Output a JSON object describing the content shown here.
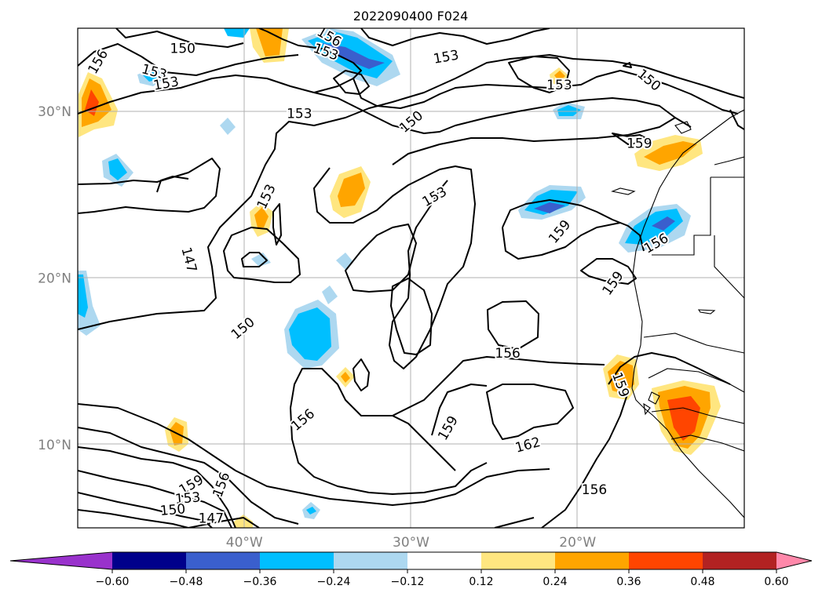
{
  "title": "2022090400 F024",
  "lat_labels": [
    {
      "text": "30°N",
      "lat": 30
    },
    {
      "text": "20°N",
      "lat": 20
    },
    {
      "text": "10°N",
      "lat": 10
    }
  ],
  "lon_labels": [
    {
      "text": "40°W",
      "lon": -40
    },
    {
      "text": "30°W",
      "lon": -30
    },
    {
      "text": "20°W",
      "lon": -20
    }
  ],
  "contour_labels": [
    {
      "text": "150",
      "lon": -43.7,
      "lat": 33.8,
      "rot": 0
    },
    {
      "text": "156",
      "lon": -48.8,
      "lat": 33.0,
      "rot": -60
    },
    {
      "text": "153",
      "lon": -45.4,
      "lat": 32.4,
      "rot": 15
    },
    {
      "text": "153",
      "lon": -44.7,
      "lat": 31.7,
      "rot": -10
    },
    {
      "text": "156",
      "lon": -34.9,
      "lat": 34.5,
      "rot": 30
    },
    {
      "text": "153",
      "lon": -35.1,
      "lat": 33.6,
      "rot": 20
    },
    {
      "text": "153",
      "lon": -27.9,
      "lat": 33.3,
      "rot": -10
    },
    {
      "text": "153",
      "lon": -21.1,
      "lat": 31.6,
      "rot": 0
    },
    {
      "text": "150",
      "lon": -15.7,
      "lat": 31.9,
      "rot": 40
    },
    {
      "text": "153",
      "lon": -36.7,
      "lat": 29.9,
      "rot": 0
    },
    {
      "text": "150",
      "lon": -30.0,
      "lat": 29.4,
      "rot": -40
    },
    {
      "text": "159",
      "lon": -16.3,
      "lat": 28.1,
      "rot": 0
    },
    {
      "text": "153",
      "lon": -38.7,
      "lat": 24.9,
      "rot": -65
    },
    {
      "text": "153",
      "lon": -28.6,
      "lat": 24.9,
      "rot": -30
    },
    {
      "text": "147",
      "lon": -43.3,
      "lat": 21.1,
      "rot": 75
    },
    {
      "text": "159",
      "lon": -21.1,
      "lat": 22.8,
      "rot": -50
    },
    {
      "text": "156",
      "lon": -15.3,
      "lat": 22.1,
      "rot": -30
    },
    {
      "text": "159",
      "lon": -17.9,
      "lat": 19.7,
      "rot": -55
    },
    {
      "text": "150",
      "lon": -40.1,
      "lat": 17.0,
      "rot": -40
    },
    {
      "text": "156",
      "lon": -24.2,
      "lat": 15.5,
      "rot": 0
    },
    {
      "text": "159",
      "lon": -17.4,
      "lat": 13.6,
      "rot": 70
    },
    {
      "text": "156",
      "lon": -36.5,
      "lat": 11.5,
      "rot": -40
    },
    {
      "text": "159",
      "lon": -27.8,
      "lat": 11.0,
      "rot": -60
    },
    {
      "text": "162",
      "lon": -23.0,
      "lat": 10.0,
      "rot": -15
    },
    {
      "text": "159",
      "lon": -43.2,
      "lat": 7.6,
      "rot": -30
    },
    {
      "text": "156",
      "lon": -41.4,
      "lat": 7.6,
      "rot": -70
    },
    {
      "text": "156",
      "lon": -19.0,
      "lat": 7.3,
      "rot": 0
    },
    {
      "text": "153",
      "lon": -43.4,
      "lat": 6.8,
      "rot": -5
    },
    {
      "text": "150",
      "lon": -44.3,
      "lat": 6.1,
      "rot": -5
    },
    {
      "text": "147",
      "lon": -42.0,
      "lat": 5.6,
      "rot": 0
    }
  ],
  "colorbar": {
    "ticks": [
      "−0.60",
      "−0.48",
      "−0.36",
      "−0.24",
      "−0.12",
      "0.12",
      "0.24",
      "0.36",
      "0.48",
      "0.60"
    ],
    "colors": [
      "#9932cc",
      "#00008b",
      "#3a5fcd",
      "#00bfff",
      "#add8f0",
      "#ffffff",
      "#ffe680",
      "#ffa500",
      "#ff4500",
      "#b22222",
      "#ff88aa"
    ]
  },
  "chart_data": {
    "type": "map",
    "domain": {
      "lon": [
        -50,
        -10
      ],
      "lat": [
        5,
        35
      ]
    },
    "contour_levels": [
      147,
      150,
      153,
      156,
      159,
      162
    ],
    "shading_levels": [
      -0.6,
      -0.48,
      -0.36,
      -0.24,
      -0.12,
      0.12,
      0.24,
      0.36,
      0.48,
      0.6
    ],
    "grid": true
  }
}
